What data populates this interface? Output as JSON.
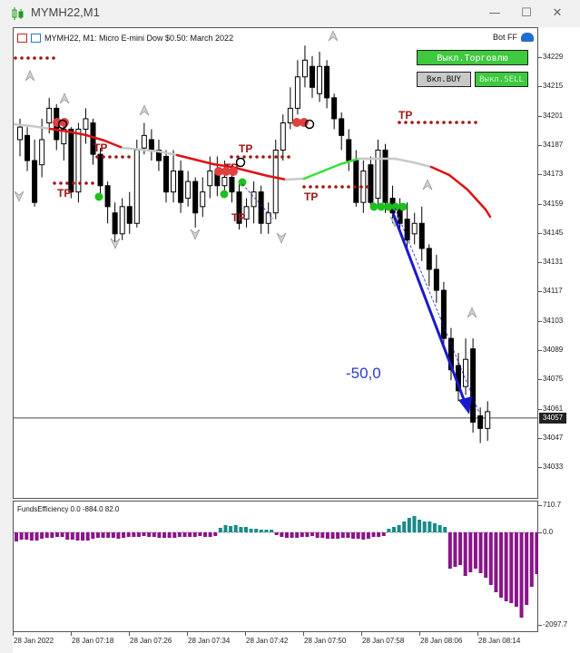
{
  "window": {
    "title": "MYMH22,M1",
    "controls": {
      "minimize": "—",
      "maximize": "☐",
      "close": "✕"
    }
  },
  "chart": {
    "header": "MYMH22, M1:  Micro E-mini Dow $0.50: March 2022",
    "bot_label": "Bot FF",
    "buttons": {
      "trading_toggle": "Выкл.Торговлю",
      "buy_toggle": "Вкл.BUY",
      "sell_toggle": "Выкл.SELL"
    },
    "current_price": "34057",
    "tp_label": "TP",
    "pl_annotation": "-50,0",
    "colors": {
      "up": "#ffffff",
      "down": "#000000",
      "ma_red": "#e01010",
      "ma_green": "#38e038",
      "ma_gray": "#c8c8c8",
      "arrow": "#1a1acc",
      "tp": "#a11616"
    }
  },
  "price_scale": {
    "labels": [
      "34229",
      "34215",
      "34201",
      "34187",
      "34173",
      "34159",
      "34145",
      "34131",
      "34117",
      "34103",
      "34089",
      "34075",
      "34061",
      "34047",
      "34033"
    ]
  },
  "indicator": {
    "label": "FundsEfficiency 0.0 -884.0 82.0",
    "scale": [
      "710.7",
      "0.0",
      "-2097.7"
    ],
    "colors": {
      "pos": "#1a8a8a",
      "neg": "#8a158a"
    }
  },
  "time_scale": {
    "labels": [
      "28 Jan 2022",
      "28 Jan 07:18",
      "28 Jan 07:26",
      "28 Jan 07:34",
      "28 Jan 07:42",
      "28 Jan 07:50",
      "28 Jan 07:58",
      "28 Jan 08:06",
      "28 Jan 08:14"
    ]
  }
}
